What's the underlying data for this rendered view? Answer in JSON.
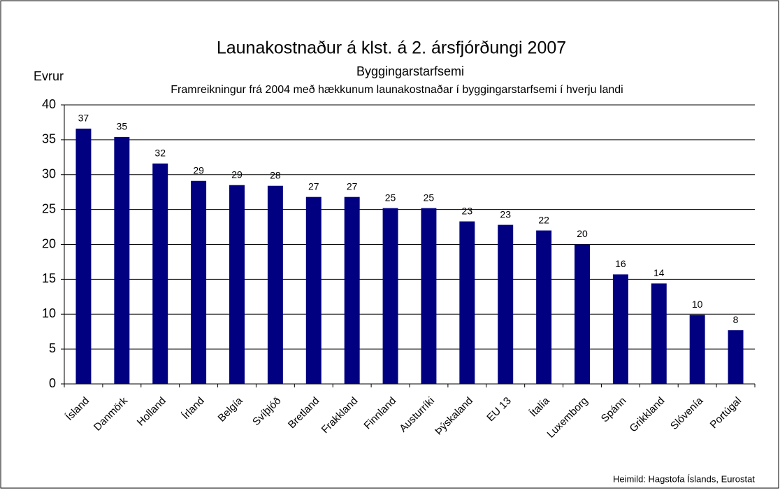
{
  "chart_data": {
    "type": "bar",
    "title": "Launakostnaður á klst. á 2. ársfjórðungi 2007",
    "subtitle": "Byggingarstarfsemi",
    "subtitle2": "Framreikningur frá 2004 með hækkunum launakostnaðar í byggingarstarfsemi í hverju landi",
    "y_label": "Evrur",
    "source": "Heimild: Hagstofa Íslands, Eurostat",
    "categories": [
      "Ísland",
      "Danmörk",
      "Holland",
      "Írland",
      "Belgía",
      "Svíþjóð",
      "Bretland",
      "Frakkland",
      "Finnland",
      "Austurríki",
      "Þýskaland",
      "EU 13",
      "Ítalía",
      "Luxemborg",
      "Spánn",
      "Grikkland",
      "Slóvenía",
      "Portúgal"
    ],
    "values": [
      36.6,
      35.4,
      31.6,
      29.1,
      28.5,
      28.4,
      26.8,
      26.8,
      25.2,
      25.2,
      23.3,
      22.8,
      22.0,
      20.0,
      15.7,
      14.4,
      9.9,
      7.7
    ],
    "value_labels": [
      "37",
      "35",
      "32",
      "29",
      "29",
      "28",
      "27",
      "27",
      "25",
      "25",
      "23",
      "23",
      "22",
      "20",
      "16",
      "14",
      "10",
      "8"
    ],
    "color": "#000080",
    "ylim": [
      0,
      40
    ],
    "yticks": [
      0,
      5,
      10,
      15,
      20,
      25,
      30,
      35,
      40
    ],
    "grid": true
  }
}
